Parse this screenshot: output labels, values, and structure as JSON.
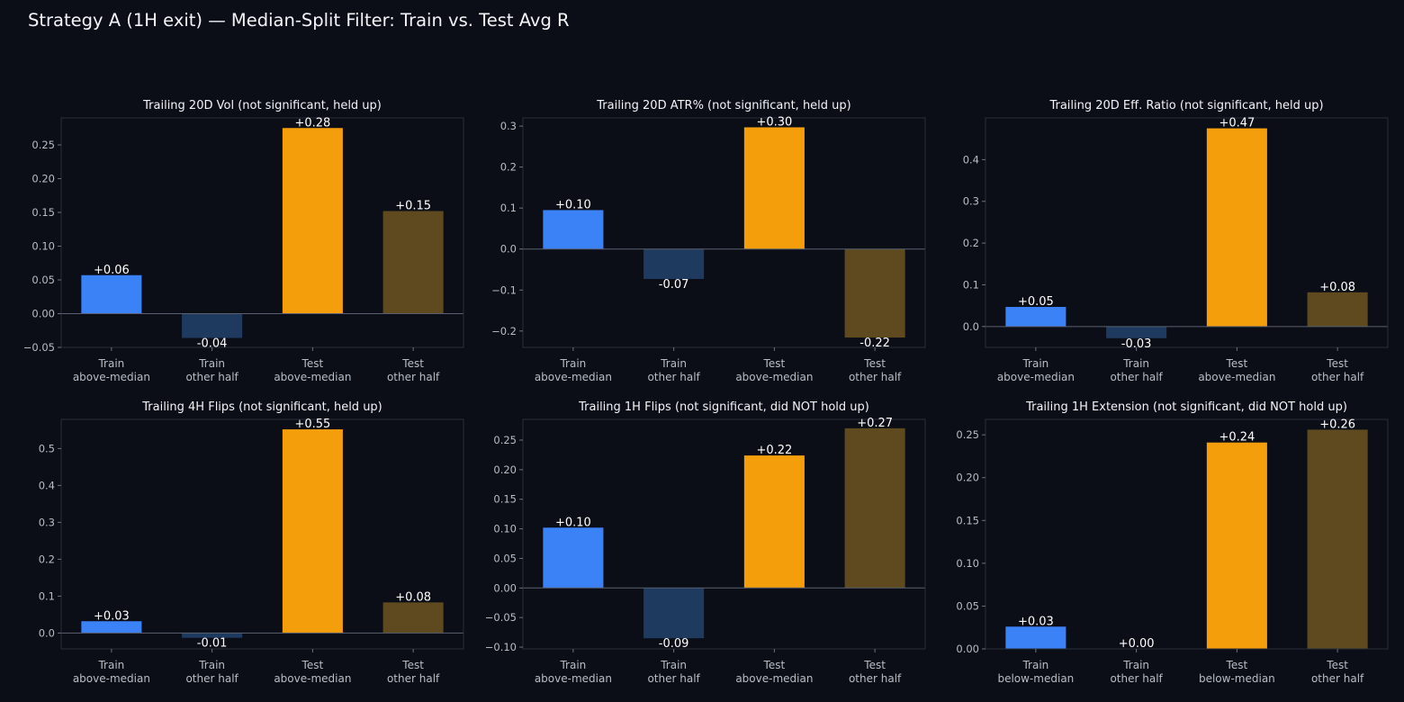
{
  "title": "Strategy A (1H exit) — Median-Split Filter: Train vs. Test Avg R",
  "colors": {
    "background": "#0b0e16",
    "axes_frame": "#2a2f3a",
    "zero_line": "#5a6070",
    "text": "#f2f4f8",
    "tick_text": "#b7bdc8",
    "train_filtered": "#3b82f6",
    "train_other": "#1f3a5f",
    "test_filtered": "#f59e0b",
    "test_other": "#5e4a1e"
  },
  "chart_data": [
    {
      "type": "bar",
      "title": "Trailing 20D Vol (not significant, held up)",
      "categories": [
        [
          "Train",
          "above-median"
        ],
        [
          "Train",
          "other half"
        ],
        [
          "Test",
          "above-median"
        ],
        [
          "Test",
          "other half"
        ]
      ],
      "values": [
        0.057,
        -0.036,
        0.275,
        0.152
      ],
      "labels": [
        "+0.06",
        "-0.04",
        "+0.28",
        "+0.15"
      ],
      "ylim": [
        -0.05,
        0.29
      ],
      "yticks": [
        -0.05,
        0,
        0.05,
        0.1,
        0.15,
        0.2,
        0.25
      ],
      "ytick_labels": [
        "−0.05",
        "0.00",
        "0.05",
        "0.10",
        "0.15",
        "0.20",
        "0.25"
      ]
    },
    {
      "type": "bar",
      "title": "Trailing 20D ATR% (not significant, held up)",
      "categories": [
        [
          "Train",
          "above-median"
        ],
        [
          "Train",
          "other half"
        ],
        [
          "Test",
          "above-median"
        ],
        [
          "Test",
          "other half"
        ]
      ],
      "values": [
        0.095,
        -0.073,
        0.297,
        -0.216
      ],
      "labels": [
        "+0.10",
        "-0.07",
        "+0.30",
        "-0.22"
      ],
      "ylim": [
        -0.24,
        0.32
      ],
      "yticks": [
        -0.2,
        -0.1,
        0,
        0.1,
        0.2,
        0.3
      ],
      "ytick_labels": [
        "−0.2",
        "−0.1",
        "0.0",
        "0.1",
        "0.2",
        "0.3"
      ]
    },
    {
      "type": "bar",
      "title": "Trailing 20D Eff. Ratio (not significant, held up)",
      "categories": [
        [
          "Train",
          "above-median"
        ],
        [
          "Train",
          "other half"
        ],
        [
          "Test",
          "above-median"
        ],
        [
          "Test",
          "other half"
        ]
      ],
      "values": [
        0.047,
        -0.028,
        0.475,
        0.082
      ],
      "labels": [
        "+0.05",
        "-0.03",
        "+0.47",
        "+0.08"
      ],
      "ylim": [
        -0.05,
        0.5
      ],
      "yticks": [
        0,
        0.1,
        0.2,
        0.3,
        0.4
      ],
      "ytick_labels": [
        "0.0",
        "0.1",
        "0.2",
        "0.3",
        "0.4"
      ]
    },
    {
      "type": "bar",
      "title": "Trailing 4H Flips (not significant, held up)",
      "categories": [
        [
          "Train",
          "above-median"
        ],
        [
          "Train",
          "other half"
        ],
        [
          "Test",
          "above-median"
        ],
        [
          "Test",
          "other half"
        ]
      ],
      "values": [
        0.032,
        -0.013,
        0.552,
        0.083
      ],
      "labels": [
        "+0.03",
        "-0.01",
        "+0.55",
        "+0.08"
      ],
      "ylim": [
        -0.043,
        0.579
      ],
      "yticks": [
        0,
        0.1,
        0.2,
        0.3,
        0.4,
        0.5
      ],
      "ytick_labels": [
        "0.0",
        "0.1",
        "0.2",
        "0.3",
        "0.4",
        "0.5"
      ]
    },
    {
      "type": "bar",
      "title": "Trailing 1H Flips (not significant, did NOT hold up)",
      "categories": [
        [
          "Train",
          "above-median"
        ],
        [
          "Train",
          "other half"
        ],
        [
          "Test",
          "above-median"
        ],
        [
          "Test",
          "other half"
        ]
      ],
      "values": [
        0.102,
        -0.085,
        0.224,
        0.27
      ],
      "labels": [
        "+0.10",
        "-0.09",
        "+0.22",
        "+0.27"
      ],
      "ylim": [
        -0.103,
        0.285
      ],
      "yticks": [
        -0.1,
        -0.05,
        0,
        0.05,
        0.1,
        0.15,
        0.2,
        0.25
      ],
      "ytick_labels": [
        "−0.10",
        "−0.05",
        "0.00",
        "0.05",
        "0.10",
        "0.15",
        "0.20",
        "0.25"
      ]
    },
    {
      "type": "bar",
      "title": "Trailing 1H Extension (not significant, did NOT hold up)",
      "categories": [
        [
          "Train",
          "below-median"
        ],
        [
          "Train",
          "other half"
        ],
        [
          "Test",
          "below-median"
        ],
        [
          "Test",
          "other half"
        ]
      ],
      "values": [
        0.026,
        0.0,
        0.241,
        0.256
      ],
      "labels": [
        "+0.03",
        "+0.00",
        "+0.24",
        "+0.26"
      ],
      "ylim": [
        0,
        0.268
      ],
      "yticks": [
        0,
        0.05,
        0.1,
        0.15,
        0.2,
        0.25
      ],
      "ytick_labels": [
        "0.00",
        "0.05",
        "0.10",
        "0.15",
        "0.20",
        "0.25"
      ]
    }
  ]
}
